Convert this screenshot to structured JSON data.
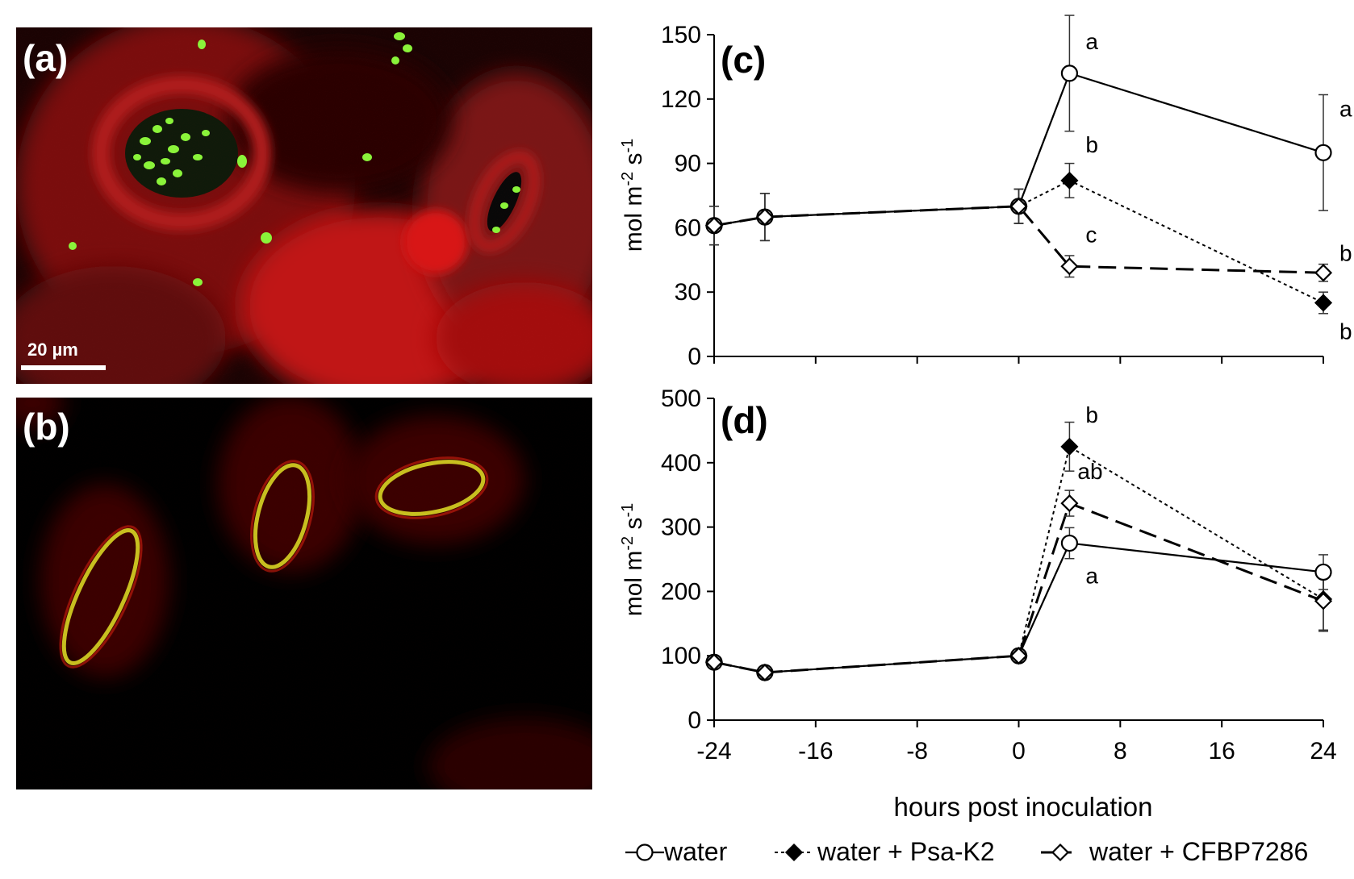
{
  "figure": {
    "panels": {
      "a": "(a)",
      "b": "(b)",
      "c": "(c)",
      "d": "(d)"
    },
    "scale_bar": "20 µm",
    "colors": {
      "background": "#000000",
      "tissue_red": "#c41a1a",
      "fluor_green": "#7df23a",
      "line": "#000000"
    }
  },
  "legend": [
    {
      "series": "water",
      "label": "water",
      "marker": "open-circle",
      "dash": "solid"
    },
    {
      "series": "psa",
      "label": "water + Psa-K2",
      "marker": "filled-diamond",
      "dash": "dotted"
    },
    {
      "series": "cfbp",
      "label": "water + CFBP7286",
      "marker": "open-diamond",
      "dash": "dashed"
    }
  ],
  "chart_data": [
    {
      "type": "line",
      "panel": "(c)",
      "xlabel": "hours post inoculation",
      "ylabel": "mol m-2 s-1",
      "ylabel_parts": {
        "base": "mol m",
        "exp1": "-2",
        "mid": " s",
        "exp2": "-1"
      },
      "xlim": [
        -24,
        24
      ],
      "ylim": [
        0,
        150
      ],
      "xticks": [
        -24,
        -16,
        -8,
        0,
        8,
        16,
        24
      ],
      "yticks": [
        0,
        30,
        60,
        90,
        120,
        150
      ],
      "grid": false,
      "series": [
        {
          "name": "water",
          "x": [
            -24,
            -20,
            0,
            4,
            24
          ],
          "y": [
            61,
            65,
            70,
            132,
            95
          ],
          "err": [
            9,
            11,
            8,
            27,
            27
          ]
        },
        {
          "name": "water + Psa-K2",
          "x": [
            -24,
            -20,
            0,
            4,
            24
          ],
          "y": [
            61,
            65,
            70,
            82,
            25
          ],
          "err": [
            9,
            11,
            8,
            8,
            5
          ]
        },
        {
          "name": "water + CFBP7286",
          "x": [
            -24,
            -20,
            0,
            4,
            24
          ],
          "y": [
            61,
            65,
            70,
            42,
            39
          ],
          "err": [
            9,
            11,
            8,
            5,
            4
          ]
        }
      ],
      "annotations": [
        {
          "text": "a",
          "x": 4,
          "y": 132
        },
        {
          "text": "b",
          "x": 4,
          "y": 82
        },
        {
          "text": "c",
          "x": 4,
          "y": 42
        },
        {
          "text": "a",
          "x": 24,
          "y": 95
        },
        {
          "text": "b",
          "x": 24,
          "y": 39
        },
        {
          "text": "b",
          "x": 24,
          "y": 25
        }
      ]
    },
    {
      "type": "line",
      "panel": "(d)",
      "xlabel": "hours post inoculation",
      "ylabel": "mol m-2 s-1",
      "ylabel_parts": {
        "base": "mol m",
        "exp1": "-2",
        "mid": " s",
        "exp2": "-1"
      },
      "xlim": [
        -24,
        24
      ],
      "ylim": [
        0,
        500
      ],
      "xticks": [
        -24,
        -16,
        -8,
        0,
        8,
        16,
        24
      ],
      "yticks": [
        0,
        100,
        200,
        300,
        400,
        500
      ],
      "grid": false,
      "series": [
        {
          "name": "water",
          "x": [
            -24,
            -20,
            0,
            4,
            24
          ],
          "y": [
            90,
            74,
            100,
            275,
            230
          ],
          "err": [
            6,
            6,
            6,
            24,
            27
          ]
        },
        {
          "name": "water + Psa-K2",
          "x": [
            -24,
            -20,
            0,
            4,
            24
          ],
          "y": [
            90,
            74,
            100,
            425,
            188
          ],
          "err": [
            6,
            6,
            6,
            38,
            50
          ]
        },
        {
          "name": "water + CFBP7286",
          "x": [
            -24,
            -20,
            0,
            4,
            24
          ],
          "y": [
            90,
            74,
            100,
            337,
            185
          ],
          "err": [
            6,
            6,
            6,
            20,
            45
          ]
        }
      ],
      "annotations": [
        {
          "text": "b",
          "x": 4,
          "y": 425
        },
        {
          "text": "ab",
          "x": 4,
          "y": 337
        },
        {
          "text": "a",
          "x": 4,
          "y": 275
        }
      ]
    }
  ]
}
